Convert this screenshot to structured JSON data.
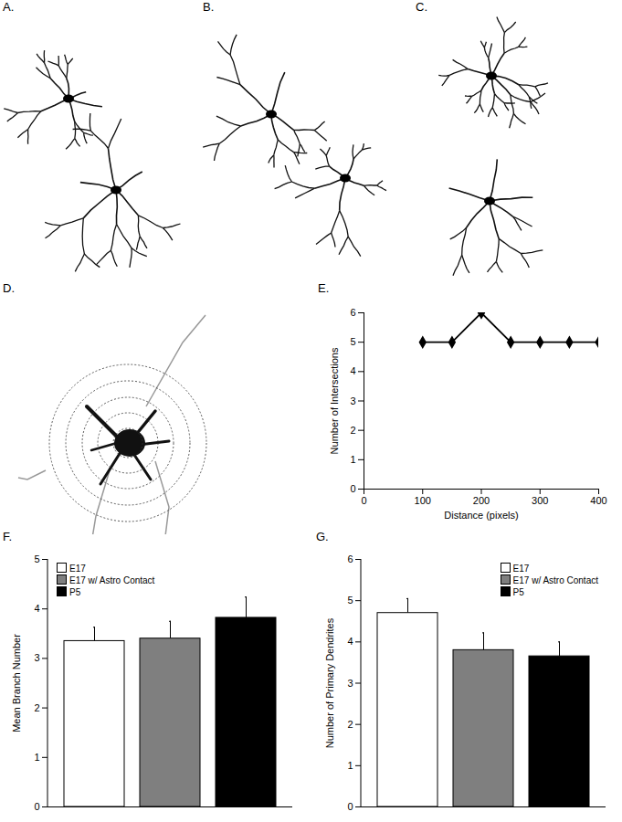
{
  "panel_labels": [
    "A.",
    "B.",
    "C.",
    "D."
  ],
  "chart_data": [
    {
      "type": "line",
      "title": "E.",
      "xlabel": "Distance (pixels)",
      "ylabel": "Number of Intersections",
      "x": [
        100,
        150,
        200,
        250,
        300,
        350,
        400
      ],
      "values": [
        5,
        5,
        6,
        5,
        5,
        5,
        5
      ],
      "color": "#000000",
      "marker": "diamond",
      "xlim": [
        0,
        400
      ],
      "xticks": [
        0,
        100,
        200,
        300,
        400
      ],
      "ylim": [
        0,
        6
      ],
      "yticks": [
        0,
        1,
        2,
        3,
        4,
        5,
        6
      ]
    },
    {
      "type": "bar",
      "title": "F.",
      "ylabel": "Mean Branch Number",
      "categories": [
        "E17",
        "E17 w/ Astro Contact",
        "P5"
      ],
      "values": [
        3.35,
        3.4,
        3.82
      ],
      "errors": [
        0.28,
        0.35,
        0.42
      ],
      "colors": [
        "#ffffff",
        "#7f7f7f",
        "#000000"
      ],
      "ylim": [
        0,
        5
      ],
      "yticks": [
        0,
        1,
        2,
        3,
        4,
        5
      ],
      "legend": "upper left",
      "tick_labels": "y"
    },
    {
      "type": "bar",
      "title": "G.",
      "ylabel": "Number of Primary Dendrites",
      "categories": [
        "E17",
        "E17 w/ Astro Contact",
        "P5"
      ],
      "values": [
        4.7,
        3.8,
        3.65
      ],
      "errors": [
        0.35,
        0.42,
        0.35
      ],
      "colors": [
        "#ffffff",
        "#7f7f7f",
        "#000000"
      ],
      "ylim": [
        0,
        6
      ],
      "yticks": [
        0,
        1,
        2,
        3,
        4,
        5,
        6
      ],
      "legend": "upper right",
      "tick_labels": "y"
    }
  ]
}
